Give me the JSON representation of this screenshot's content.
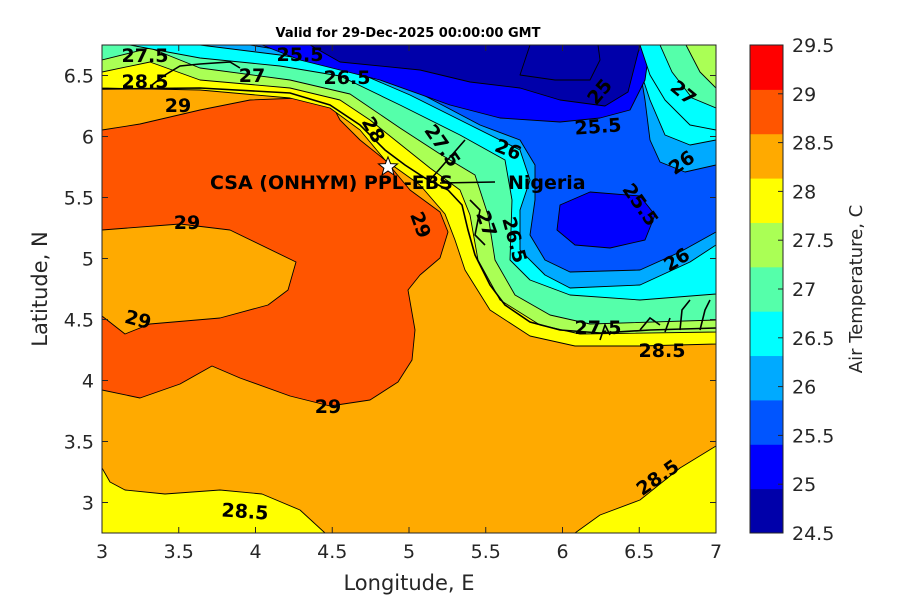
{
  "chart_data": {
    "type": "contour",
    "title": "Valid for 29-Dec-2025 00:00:00 GMT",
    "xlabel": "Longitude, E",
    "ylabel": "Latitude, N",
    "xlim": [
      3,
      7
    ],
    "ylim": [
      2.75,
      6.75
    ],
    "xticks": [
      3,
      3.5,
      4,
      4.5,
      5,
      5.5,
      6,
      6.5,
      7
    ],
    "xtick_labels": [
      "3",
      "3.5",
      "4",
      "4.5",
      "5",
      "5.5",
      "6",
      "6.5",
      "7"
    ],
    "yticks": [
      3,
      3.5,
      4,
      4.5,
      5,
      5.5,
      6,
      6.5
    ],
    "ytick_labels": [
      "3",
      "3.5",
      "4",
      "4.5",
      "5",
      "5.5",
      "6",
      "6.5"
    ],
    "colorbar": {
      "label": "Air Temperature, C",
      "range": [
        24.5,
        29.5
      ],
      "ticks": [
        24.5,
        25,
        25.5,
        26,
        26.5,
        27,
        27.5,
        28,
        28.5,
        29,
        29.5
      ],
      "tick_labels": [
        "24.5",
        "25",
        "25.5",
        "26",
        "26.5",
        "27",
        "27.5",
        "28",
        "28.5",
        "29",
        "29.5"
      ],
      "colors": [
        "#0000aa",
        "#0000ff",
        "#0055ff",
        "#00aaff",
        "#00ffff",
        "#55ffaa",
        "#aaff55",
        "#ffff00",
        "#ffaa00",
        "#ff5500",
        "#ff0000"
      ]
    },
    "contour_levels": [
      25,
      25.5,
      26,
      26.5,
      27,
      27.5,
      28,
      28.5,
      29
    ],
    "contour_labels": [
      "27.5",
      "25.5",
      "26.5",
      "28.5",
      "27",
      "29",
      "25",
      "25.5",
      "27",
      "26",
      "26",
      "25.5",
      "26",
      "29",
      "29",
      "29",
      "28.5",
      "28.5",
      "29",
      "26.5",
      "27.5",
      "28.5",
      "27",
      "27.5",
      "28"
    ],
    "annotations": {
      "site_label": "CSA (ONHYM) PPL-EBS",
      "country_label": "Nigeria"
    }
  }
}
